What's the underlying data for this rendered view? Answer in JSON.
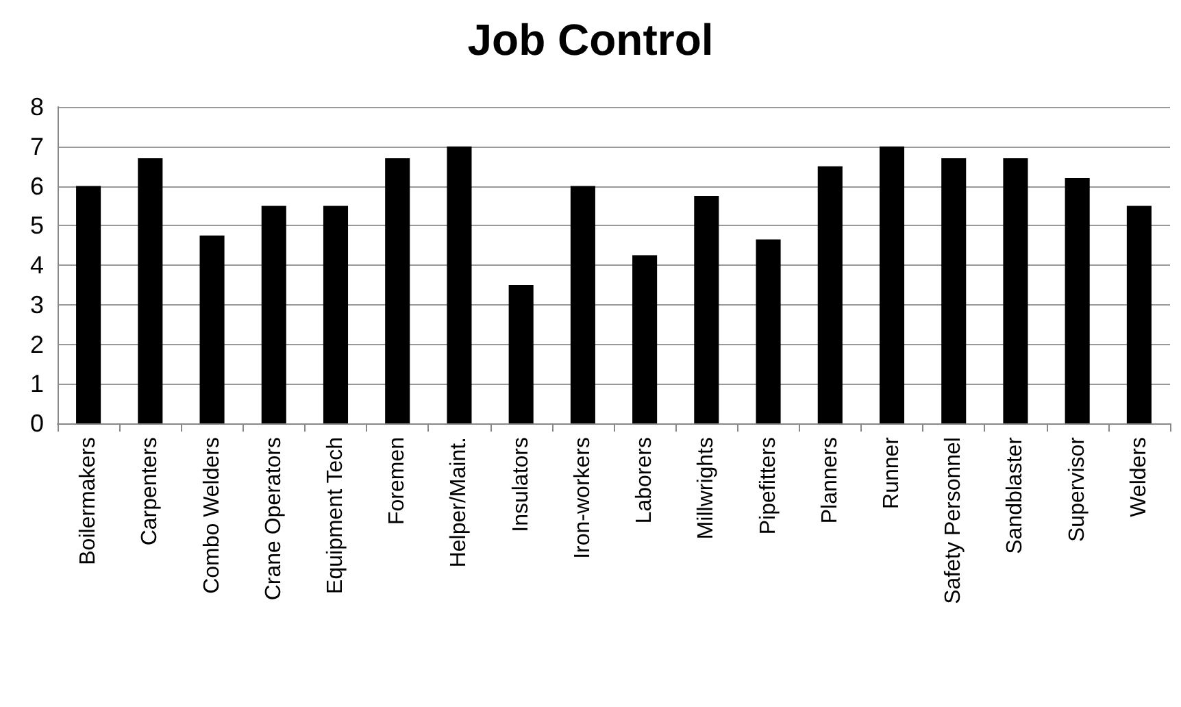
{
  "chart_data": {
    "type": "bar",
    "title": "Job Control",
    "categories": [
      "Boilermakers",
      "Carpenters",
      "Combo Welders",
      "Crane Operators",
      "Equipment Tech",
      "Foremen",
      "Helper/Maint.",
      "Insulators",
      "Iron-workers",
      "Laborers",
      "Millwrights",
      "Pipefitters",
      "Planners",
      "Runner",
      "Safety Personnel",
      "Sandblaster",
      "Supervisor",
      "Welders"
    ],
    "values": [
      6,
      6.7,
      4.75,
      5.5,
      5.5,
      6.7,
      7,
      3.5,
      6,
      4.25,
      5.75,
      4.65,
      6.5,
      7,
      6.7,
      6.7,
      6.2,
      5.5
    ],
    "color": "#000000",
    "ylim": [
      0,
      8
    ],
    "yticks": [
      0,
      1,
      2,
      3,
      4,
      5,
      6,
      7,
      8
    ],
    "grid": "y"
  }
}
